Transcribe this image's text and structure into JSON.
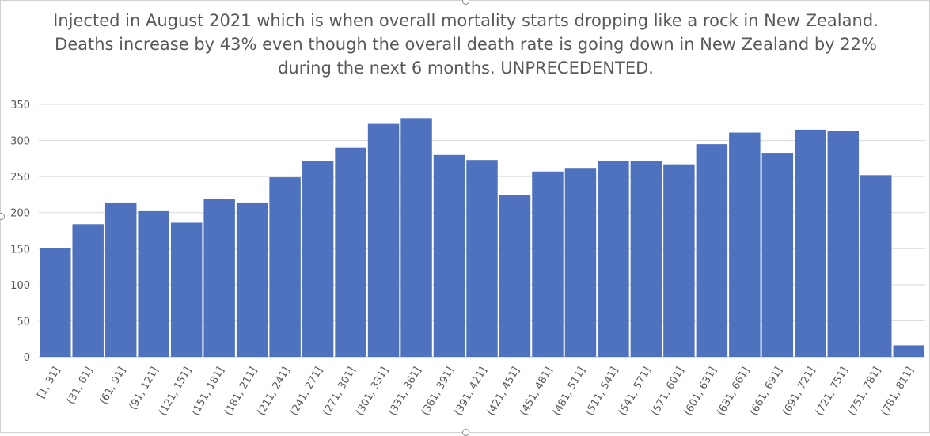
{
  "chart_data": {
    "type": "bar",
    "title": "Injected in August 2021 which is when overall mortality starts dropping like a rock in New Zealand. Deaths increase by 43% even though the overall death rate is going down in New Zealand by 22% during the next 6 months. UNPRECEDENTED.",
    "categories": [
      "[1, 31]",
      "(31, 61]",
      "(61, 91]",
      "(91, 121]",
      "(121, 151]",
      "(151, 181]",
      "(181, 211]",
      "(211, 241]",
      "(241, 271]",
      "(271, 301]",
      "(301, 331]",
      "(331, 361]",
      "(361, 391]",
      "(391, 421]",
      "(421, 451]",
      "(451, 481]",
      "(481, 511]",
      "(511, 541]",
      "(541, 571]",
      "(571, 601]",
      "(601, 631]",
      "(631, 661]",
      "(661, 691]",
      "(691, 721]",
      "(721, 751]",
      "(751, 781]",
      "(781, 811]"
    ],
    "values": [
      151,
      184,
      214,
      202,
      186,
      219,
      214,
      249,
      272,
      290,
      323,
      331,
      280,
      273,
      224,
      257,
      262,
      272,
      272,
      267,
      295,
      311,
      283,
      315,
      313,
      252,
      16
    ],
    "ylim": [
      0,
      350
    ],
    "yticks": [
      "0",
      "50",
      "100",
      "150",
      "200",
      "250",
      "300",
      "350"
    ],
    "xlabel": "",
    "ylabel": "",
    "grid": true,
    "bar_color": "#4f72bf",
    "grid_color": "#d9d9d9"
  }
}
